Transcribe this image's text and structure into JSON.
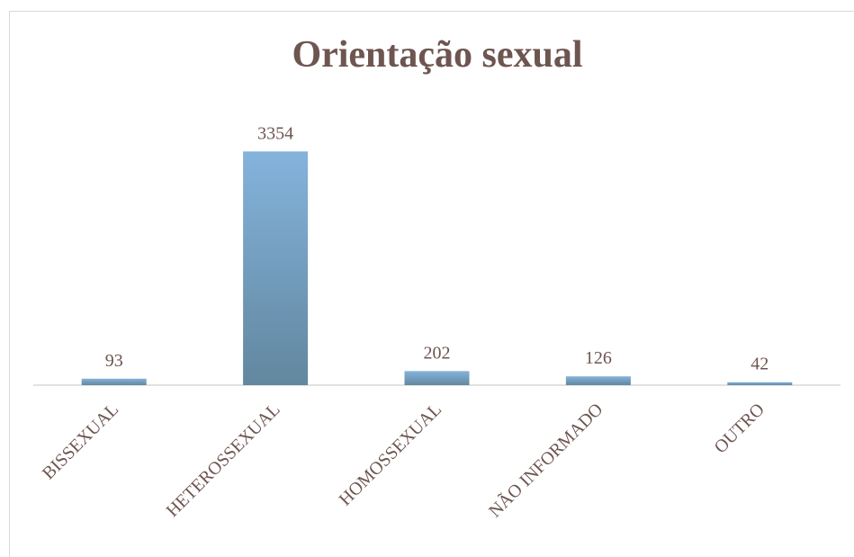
{
  "chart_data": {
    "type": "bar",
    "title": "Orientação sexual",
    "categories": [
      "BISSEXUAL",
      "HETEROSSEXUAL",
      "HOMOSSEXUAL",
      "NÃO INFORMADO",
      "OUTRO"
    ],
    "values": [
      93,
      3354,
      202,
      126,
      42
    ],
    "color": "#7aa7cf",
    "ylim": [
      0,
      3500
    ],
    "grid": false
  }
}
